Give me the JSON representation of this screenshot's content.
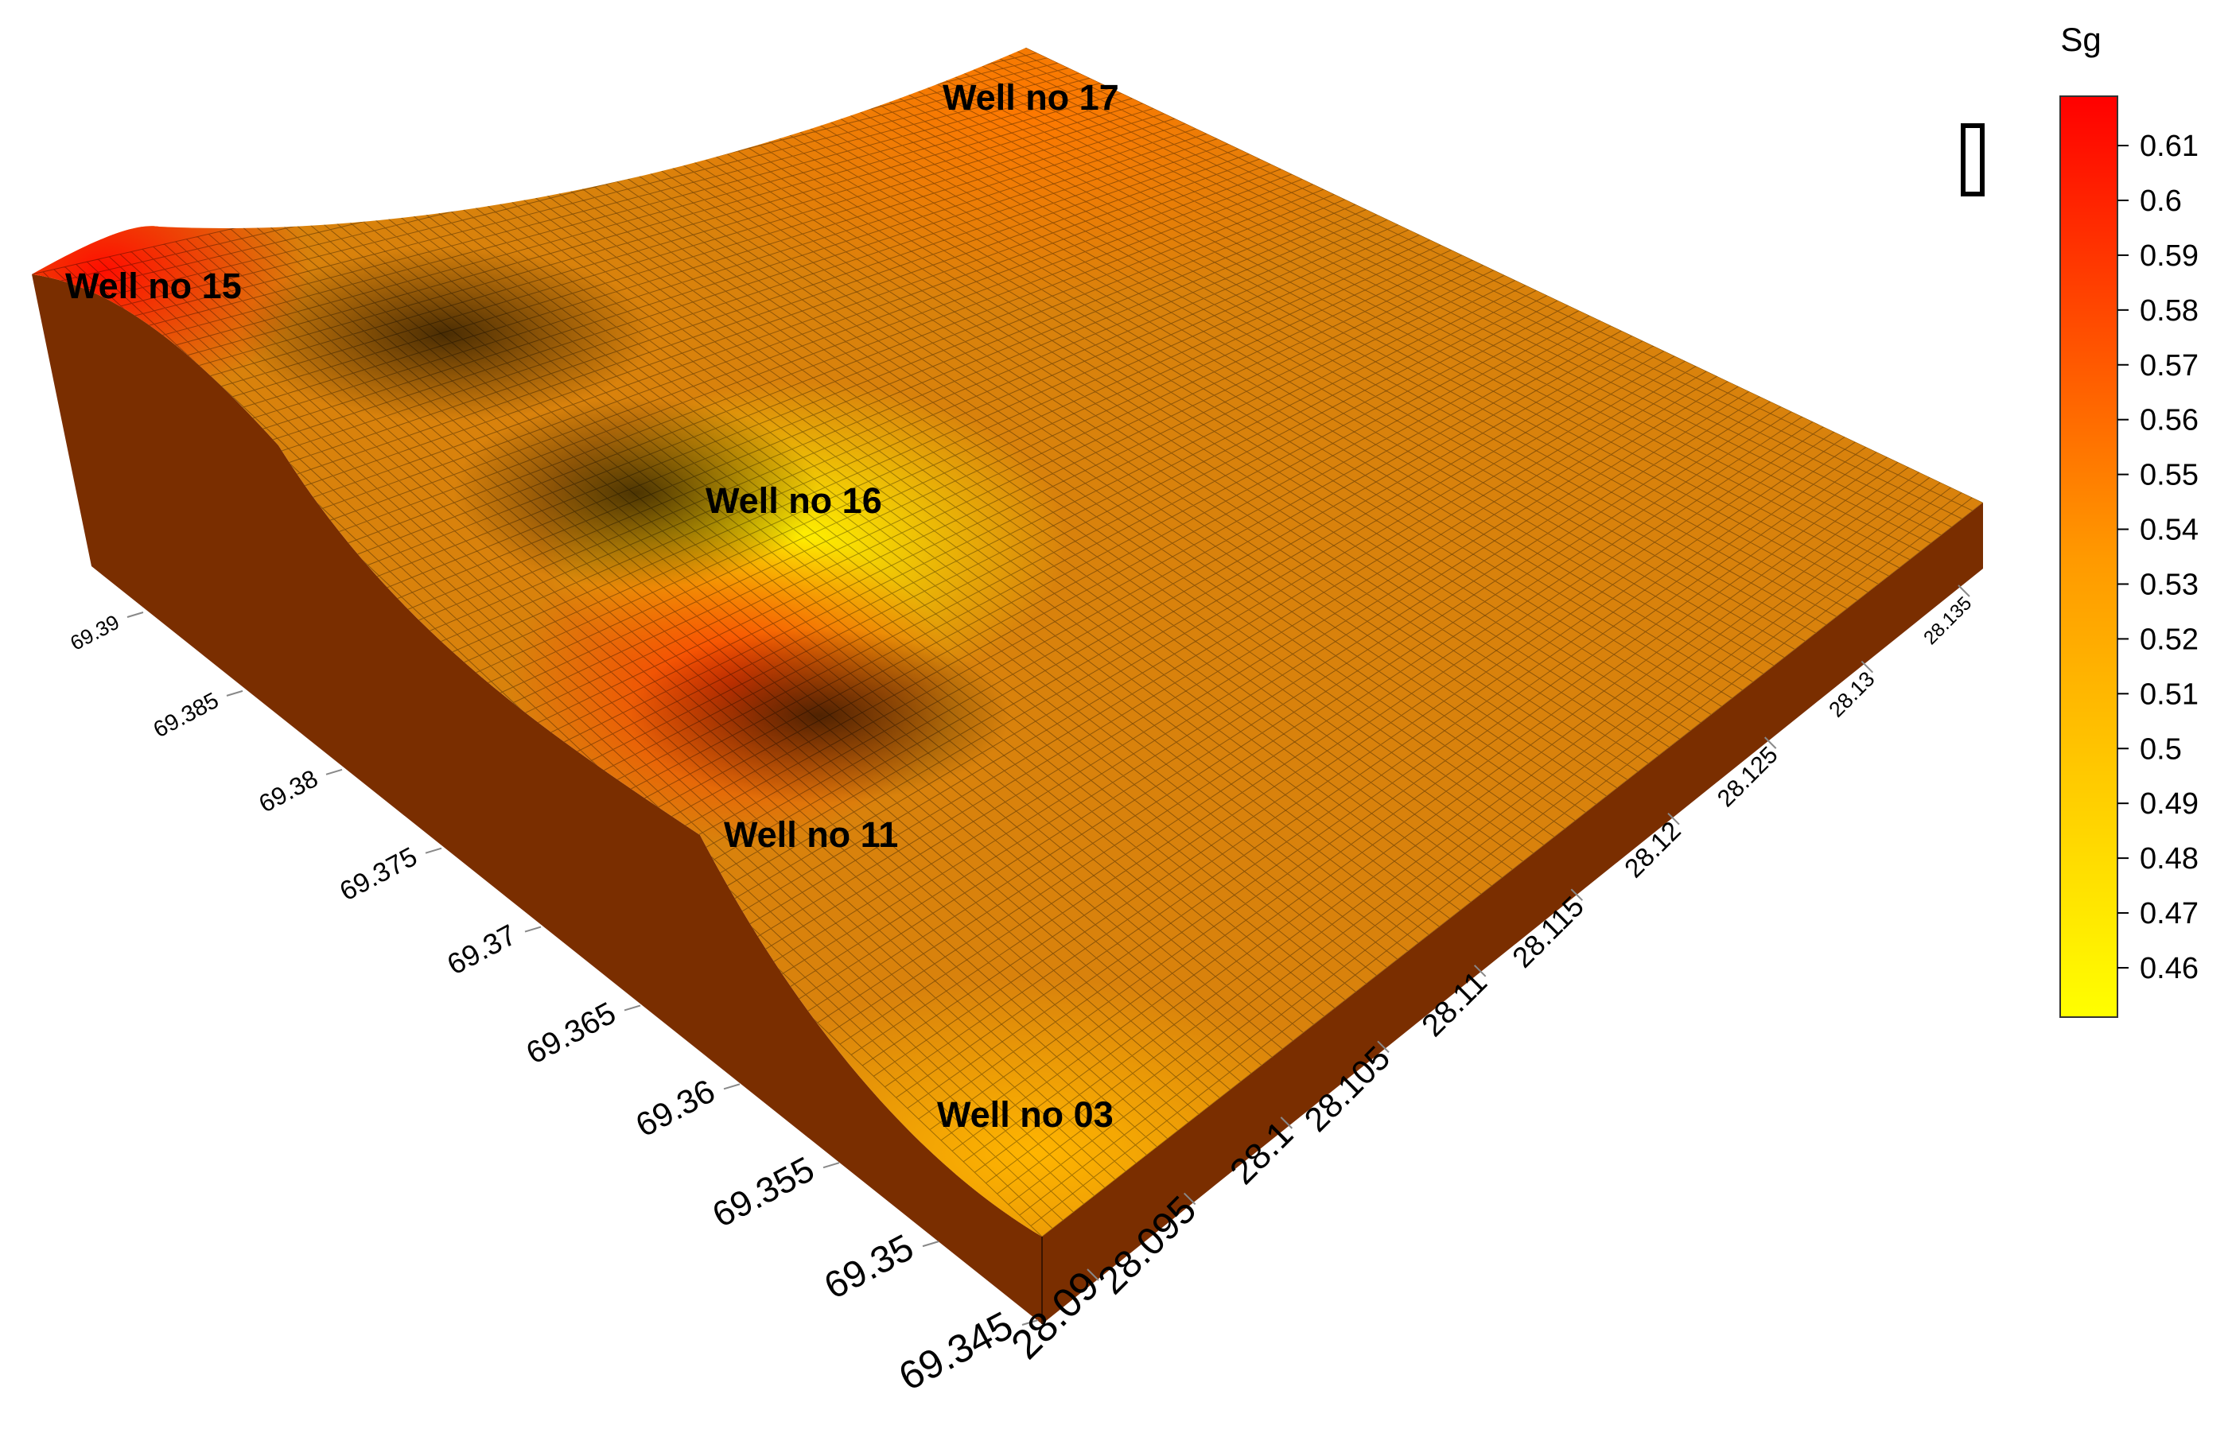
{
  "chart_data": {
    "type": "surface-3d",
    "title": "",
    "colorbar": {
      "label": "Sg",
      "ticks": [
        "0.61",
        "0.6",
        "0.59",
        "0.58",
        "0.57",
        "0.56",
        "0.55",
        "0.54",
        "0.53",
        "0.52",
        "0.51",
        "0.5",
        "0.49",
        "0.48",
        "0.47",
        "0.46"
      ],
      "range": [
        0.451,
        0.619
      ],
      "colors": [
        "#ffff00",
        "#ff0000"
      ]
    },
    "x_axis": {
      "label": "",
      "ticks": [
        "69.345",
        "69.35",
        "69.355",
        "69.36",
        "69.365",
        "69.37",
        "69.375",
        "69.38",
        "69.385",
        "69.39"
      ]
    },
    "y_axis": {
      "label": "",
      "ticks": [
        "28.09",
        "28.095",
        "28.1",
        "28.105",
        "28.11",
        "28.115",
        "28.12",
        "28.125",
        "28.13",
        "28.135"
      ]
    },
    "wells": [
      {
        "name": "Well no 15",
        "sg": 0.61
      },
      {
        "name": "Well no 17",
        "sg": 0.54
      },
      {
        "name": "Well no 16",
        "sg": 0.46
      },
      {
        "name": "Well no 11",
        "sg": 0.58
      },
      {
        "name": "Well no 03",
        "sg": 0.5
      }
    ],
    "grid": true
  },
  "colors": {
    "side_dark": "#7a2e00",
    "side_mid": "#8a3a00",
    "mesh_line": "#000000"
  }
}
